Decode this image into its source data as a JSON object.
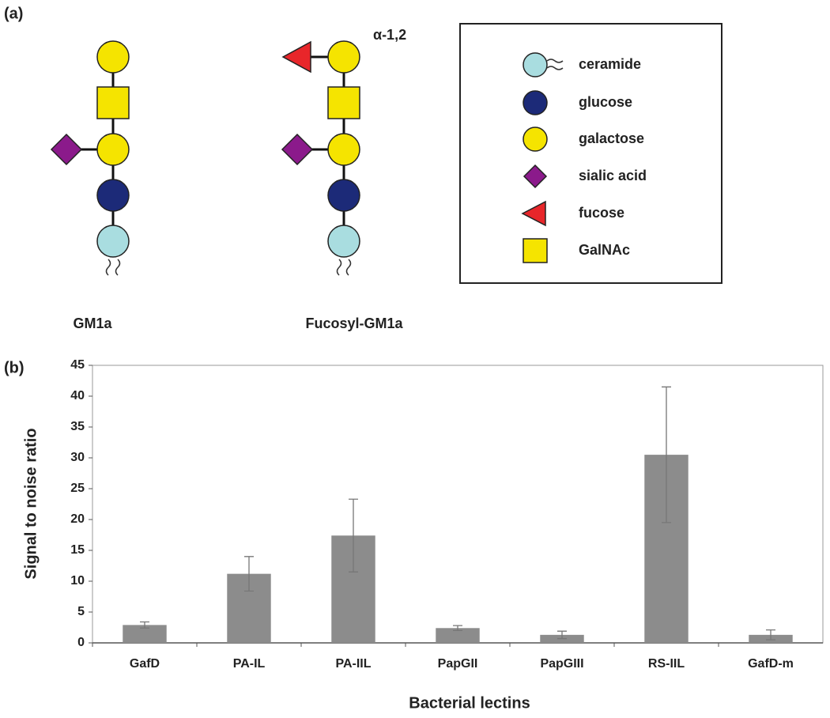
{
  "diagram": {
    "label": "(a)",
    "linkage": "α-1,2",
    "structures": [
      "GM1a",
      "Fucosyl-GM1a"
    ],
    "legend": [
      "ceramide",
      "glucose",
      "galactose",
      "sialic acid",
      "fucose",
      "GalNAc"
    ]
  },
  "chart_label": "(b)",
  "chart_data": {
    "type": "bar",
    "categories": [
      "GafD",
      "PA-IL",
      "PA-IIL",
      "PapGII",
      "PapGIII",
      "RS-IIL",
      "GafD-m"
    ],
    "values": [
      2.9,
      11.2,
      17.4,
      2.4,
      1.3,
      30.5,
      1.3
    ],
    "errors": [
      0.5,
      2.8,
      5.9,
      0.4,
      0.6,
      11,
      0.8
    ],
    "color": "#8c8c8c",
    "x_label": "Bacterial lectins",
    "y_label": "Signal to noise ratio",
    "ylim": [
      0,
      45
    ],
    "yticks": [
      0,
      5,
      10,
      15,
      20,
      25,
      30,
      35,
      40,
      45
    ],
    "grid": false
  }
}
